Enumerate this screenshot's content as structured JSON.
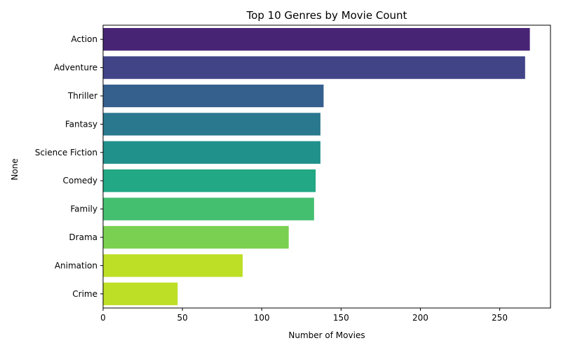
{
  "chart_data": {
    "type": "bar",
    "orientation": "horizontal",
    "title": "Top 10 Genres by Movie Count",
    "xlabel": "Number of Movies",
    "ylabel": "None",
    "xlim": [
      0,
      282
    ],
    "xticks": [
      0,
      50,
      100,
      150,
      200,
      250
    ],
    "grid": false,
    "categories": [
      "Action",
      "Adventure",
      "Thriller",
      "Fantasy",
      "Science Fiction",
      "Comedy",
      "Family",
      "Drama",
      "Animation",
      "Crime"
    ],
    "values": [
      269,
      266,
      139,
      137,
      137,
      134,
      133,
      117,
      88,
      47
    ],
    "colors": [
      "#482475",
      "#414487",
      "#355f8d",
      "#2a788e",
      "#21918c",
      "#22a884",
      "#44bf70",
      "#7ad151",
      "#bddf26",
      "#bddf26"
    ]
  }
}
